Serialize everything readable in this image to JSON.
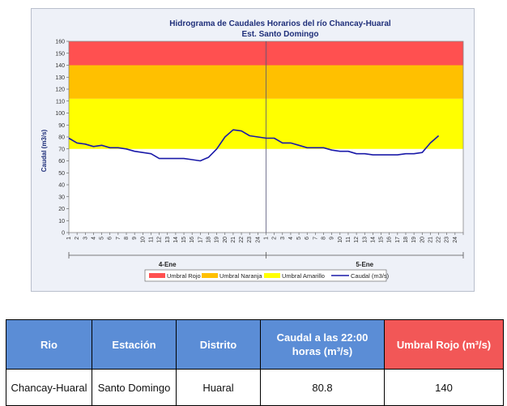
{
  "chart_data": {
    "type": "line",
    "title": "Hidrograma de Caudales Horarios del río Chancay-Huaral",
    "subtitle": "Est. Santo Domingo",
    "ylabel": "Caudal  (m3/s)",
    "ylim": [
      0,
      160
    ],
    "yticks": [
      0,
      10,
      20,
      30,
      40,
      50,
      60,
      70,
      80,
      90,
      100,
      110,
      120,
      130,
      140,
      150,
      160
    ],
    "days": [
      "4-Ene",
      "5-Ene"
    ],
    "hour_ticks": [
      "1",
      "2",
      "3",
      "4",
      "5",
      "6",
      "7",
      "8",
      "9",
      "10",
      "11",
      "12",
      "13",
      "14",
      "15",
      "16",
      "17",
      "18",
      "19",
      "20",
      "21",
      "22",
      "23",
      "24"
    ],
    "bands": [
      {
        "name": "Umbral Amarillo",
        "from": 70,
        "to": 112,
        "color": "#ffff00"
      },
      {
        "name": "Umbral Naranja",
        "from": 112,
        "to": 140,
        "color": "#ffc000"
      },
      {
        "name": "Umbral Rojo",
        "from": 140,
        "to": 160,
        "color": "#ff5050"
      }
    ],
    "legend": [
      "Umbral Rojo",
      "Umbral Naranja",
      "Umbral Amarillo",
      "Caudal (m3/s)"
    ],
    "legend_position": "bottom",
    "series": [
      {
        "name": "Caudal (m3/s)",
        "color": "#1a1aa8",
        "x": [
          1,
          2,
          3,
          4,
          5,
          6,
          7,
          8,
          9,
          10,
          11,
          12,
          13,
          14,
          15,
          16,
          17,
          18,
          19,
          20,
          21,
          22,
          23,
          24,
          25,
          26,
          27,
          28,
          29,
          30,
          31,
          32,
          33,
          34,
          35,
          36,
          37,
          38,
          39,
          40,
          41,
          42,
          43,
          44,
          45,
          46
        ],
        "values": [
          79,
          75,
          74,
          72,
          73,
          71,
          71,
          70,
          68,
          67,
          66,
          62,
          62,
          62,
          62,
          61,
          60,
          63,
          70,
          80,
          86,
          85,
          81,
          80,
          79,
          79,
          75,
          75,
          73,
          71,
          71,
          71,
          69,
          68,
          68,
          66,
          66,
          65,
          65,
          65,
          65,
          66,
          66,
          67,
          75,
          81
        ]
      }
    ]
  },
  "table": {
    "headers": [
      "Rio",
      "Estación",
      "Distrito",
      "Caudal a las 22:00 horas (m³/s)",
      "Umbral Rojo (m³/s)"
    ],
    "row": {
      "rio": "Chancay-Huaral",
      "estacion": "Santo Domingo",
      "distrito": "Huaral",
      "caudal": "80.8",
      "umbral": "140"
    }
  }
}
